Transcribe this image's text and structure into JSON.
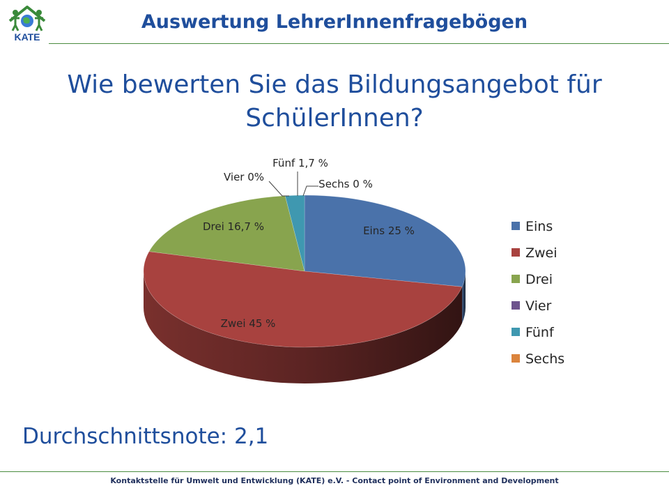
{
  "header": {
    "logo_text": "KATE",
    "title": "Auswertung LehrerInnenfragebögen"
  },
  "question": {
    "line1": "Wie bewerten Sie das Bildungsangebot für",
    "line2": "SchülerInnen?"
  },
  "chart_data": {
    "type": "pie",
    "style": "3d",
    "categories": [
      "Eins",
      "Zwei",
      "Drei",
      "Vier",
      "Fünf",
      "Sechs"
    ],
    "values": [
      25,
      45,
      16.7,
      0,
      1.7,
      0
    ],
    "data_labels": [
      "Eins 25 %",
      "Zwei 45 %",
      "Drei 16,7 %",
      "Vier 0%",
      "Fünf 1,7 %",
      "Sechs 0 %"
    ],
    "colors": [
      "#4a72aa",
      "#a8423f",
      "#88a44e",
      "#6e548d",
      "#3f98b0",
      "#db843d"
    ],
    "legend_position": "right"
  },
  "average": {
    "text": "Durchschnittsnote: 2,1"
  },
  "footer": {
    "text": "Kontaktstelle für Umwelt und Entwicklung (KATE) e.V. - Contact point of Environment and Development"
  }
}
